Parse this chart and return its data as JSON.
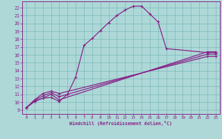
{
  "xlabel": "Windchill (Refroidissement éolien,°C)",
  "bg_color": "#aed8d8",
  "grid_color": "#7bb8b8",
  "line_color": "#882288",
  "xlim": [
    -0.5,
    23.5
  ],
  "ylim": [
    8.5,
    22.8
  ],
  "xticks": [
    0,
    1,
    2,
    3,
    4,
    5,
    6,
    7,
    8,
    9,
    10,
    11,
    12,
    13,
    14,
    15,
    16,
    17,
    18,
    19,
    20,
    21,
    22,
    23
  ],
  "yticks": [
    9,
    10,
    11,
    12,
    13,
    14,
    15,
    16,
    17,
    18,
    19,
    20,
    21,
    22
  ],
  "curve1_x": [
    0,
    1,
    2,
    3,
    4,
    5,
    6,
    7,
    8,
    9,
    10,
    11,
    12,
    13,
    14,
    15,
    16,
    17,
    22,
    23
  ],
  "curve1_y": [
    9.3,
    10.1,
    10.5,
    10.6,
    10.1,
    11.0,
    13.2,
    17.2,
    18.1,
    19.1,
    20.1,
    21.0,
    21.7,
    22.2,
    22.2,
    21.2,
    20.2,
    16.8,
    16.3,
    16.3
  ],
  "curve2_x": [
    0,
    1,
    2,
    3,
    4,
    22,
    23
  ],
  "curve2_y": [
    9.3,
    10.1,
    10.5,
    11.0,
    10.3,
    16.4,
    16.4
  ],
  "curve3_x": [
    0,
    1,
    2,
    3,
    4,
    22,
    23
  ],
  "curve3_y": [
    9.3,
    10.2,
    10.8,
    11.2,
    10.7,
    16.1,
    16.1
  ],
  "curve4_x": [
    0,
    1,
    2,
    3,
    4,
    22,
    23
  ],
  "curve4_y": [
    9.3,
    10.3,
    11.1,
    11.4,
    11.1,
    15.8,
    15.8
  ]
}
